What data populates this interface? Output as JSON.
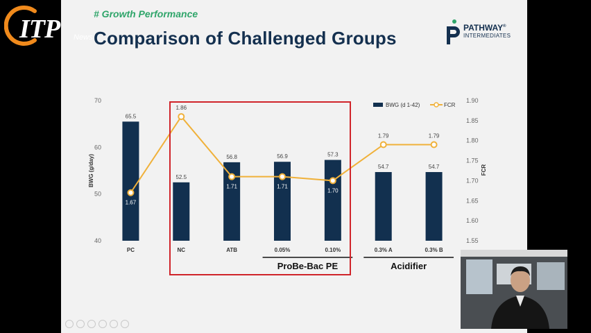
{
  "header": {
    "tag": "# Growth Performance",
    "title": "Comparison of Challenged Groups"
  },
  "branding": {
    "itp_logo": "ITP",
    "itp_news": "News",
    "company_name": "PATHWAY",
    "company_sub": "INTERMEDIATES",
    "company_mark": "®"
  },
  "colors": {
    "bar": "#12304f",
    "line": "#f0b13a",
    "accent_green": "#2fa56a",
    "highlight_box": "#d0242a"
  },
  "chart_data": {
    "type": "bar",
    "categories": [
      "PC",
      "NC",
      "ATB",
      "0.05%",
      "0.10%",
      "0.3% A",
      "0.3% B"
    ],
    "series": [
      {
        "name": "BWG (d 1-42)",
        "kind": "bar",
        "axis": "left",
        "values": [
          65.5,
          52.5,
          56.8,
          56.9,
          57.3,
          54.7,
          54.7
        ],
        "labels": [
          "65.5",
          "52.5",
          "56.8",
          "56.9",
          "57.3",
          "54.7",
          "54.7"
        ]
      },
      {
        "name": "FCR",
        "kind": "line",
        "axis": "right",
        "values": [
          1.67,
          1.86,
          1.71,
          1.71,
          1.7,
          1.79,
          1.79
        ],
        "labels": [
          "1.67",
          "1.86",
          "1.71",
          "1.71",
          "1.70",
          "1.79",
          "1.79"
        ]
      }
    ],
    "ylabel": "BWG (g/day)",
    "y2label": "FCR",
    "ylim": [
      40,
      70
    ],
    "yticks": [
      "40",
      "50",
      "60",
      "70"
    ],
    "y2lim": [
      1.55,
      1.9
    ],
    "y2ticks": [
      "1.55",
      "1.60",
      "1.65",
      "1.70",
      "1.75",
      "1.80",
      "1.85",
      "1.90"
    ],
    "legend_position": "top-right",
    "group_labels": [
      {
        "text": "ProBe-Bac PE",
        "categories": [
          "0.05%",
          "0.10%"
        ]
      },
      {
        "text": "Acidifier",
        "categories": [
          "0.3% A",
          "0.3% B"
        ]
      }
    ],
    "highlight": [
      "NC",
      "ATB",
      "0.05%",
      "0.10%"
    ]
  }
}
